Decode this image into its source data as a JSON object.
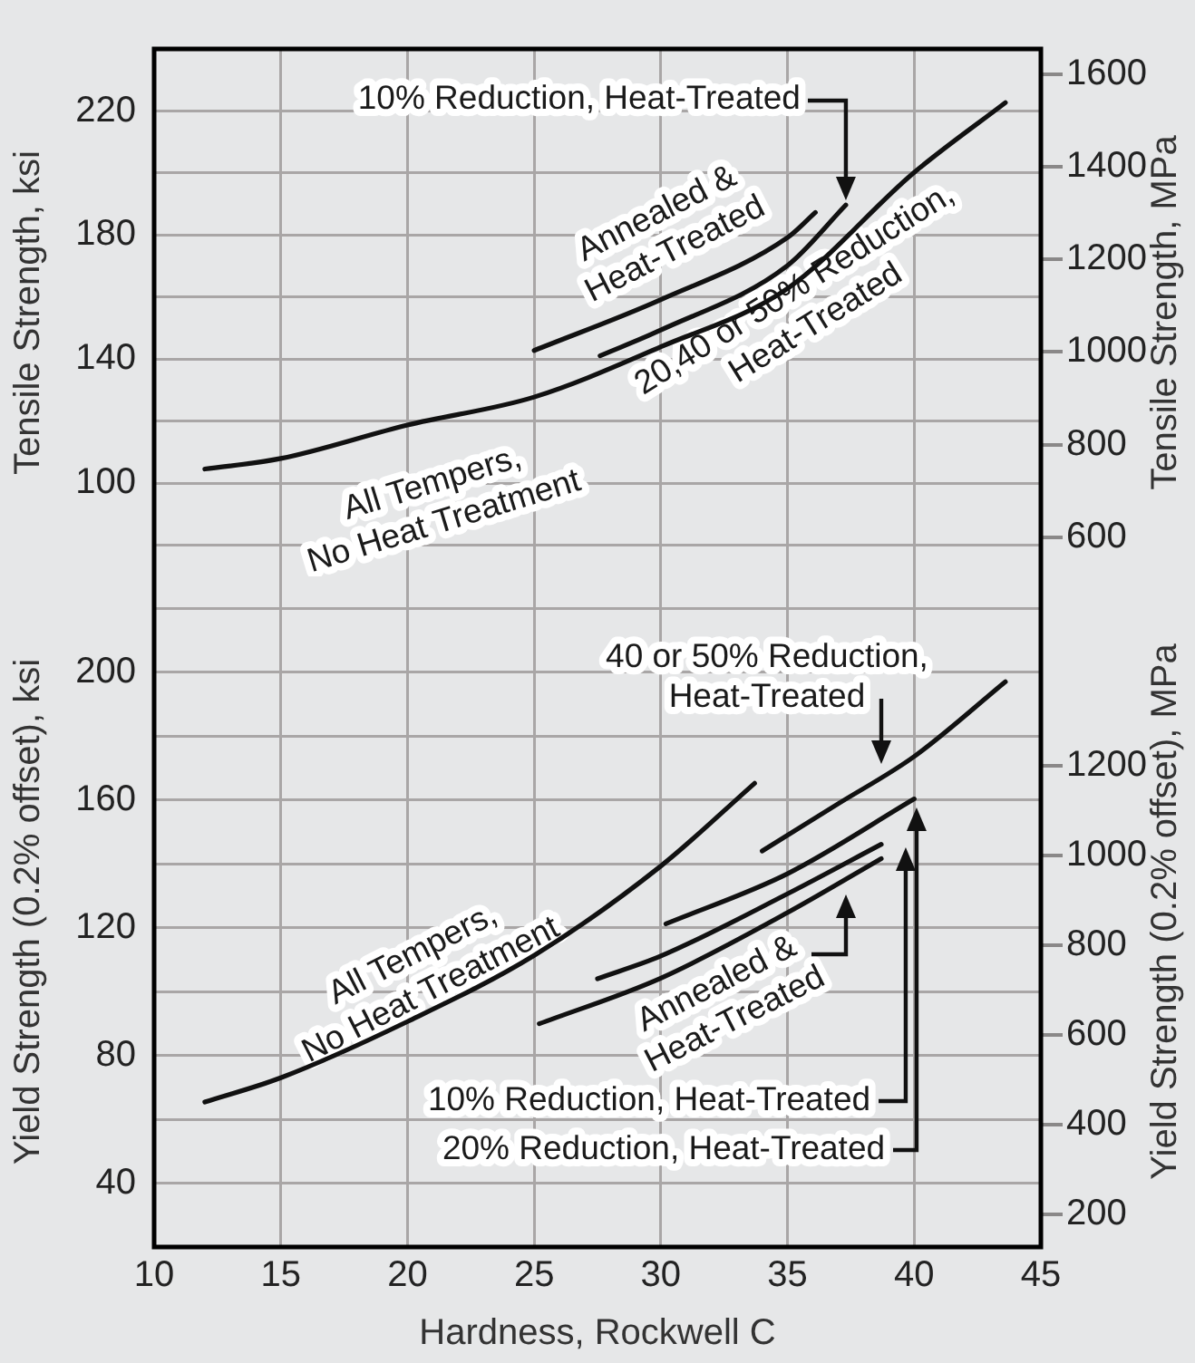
{
  "chart_data": [
    {
      "type": "line",
      "ylabel": "Tensile Strength, ksi",
      "y2label": "Tensile Strength, MPa",
      "xlim": [
        10,
        45
      ],
      "xticks": [
        10,
        15,
        20,
        25,
        30,
        35,
        40,
        45
      ],
      "ylim": [
        70,
        240
      ],
      "yticks": [
        {
          "value": 80,
          "label": null
        },
        100,
        {
          "value": 120,
          "label": null
        },
        140,
        {
          "value": 160,
          "label": null
        },
        180,
        {
          "value": 200,
          "label": null
        },
        220
      ],
      "y2lim": [
        515,
        1655
      ],
      "y2ticks": [
        600,
        800,
        1000,
        1200,
        1400,
        1600
      ],
      "grid": true,
      "tick_labels": "y",
      "series": [
        {
          "color": "#111111",
          "x": [
            12,
            15,
            20,
            25,
            30,
            35,
            40,
            43.6
          ],
          "values": [
            104.6,
            108,
            118.8,
            127.8,
            144,
            162.8,
            200.2,
            222.7
          ]
        },
        {
          "color": "#111111",
          "x": [
            25,
            30,
            35,
            36.1
          ],
          "values": [
            142.8,
            159.2,
            179.2,
            187.3
          ]
        },
        {
          "color": "#111111",
          "x": [
            27.6,
            30,
            35,
            37.3
          ],
          "values": [
            141.1,
            149.4,
            170.2,
            189.7
          ]
        }
      ],
      "annotations": [
        {
          "text": "10% Reduction, Heat-Treated",
          "x": 37.3,
          "y": 189.7
        },
        {
          "text": "Annealed &\nHeat-Treated",
          "x": 32,
          "y": 167
        },
        {
          "text": "20,40 or 50% Reduction,\nHeat-Treated",
          "x": 38,
          "y": 185
        },
        {
          "text": "All Tempers,\nNo Heat Treatment",
          "x": 20,
          "y": 118.8
        }
      ]
    },
    {
      "type": "line",
      "xlabel": "Hardness, Rockwell C",
      "ylabel": "Yield Strength (0.2% offset), ksi",
      "y2label": "Yield Strength (0.2% offset), MPa",
      "xlim": [
        10,
        45
      ],
      "xticks": [
        10,
        15,
        20,
        25,
        30,
        35,
        40,
        45
      ],
      "ylim": [
        20,
        230
      ],
      "yticks": [
        40,
        {
          "value": 60,
          "label": null
        },
        80,
        {
          "value": 100,
          "label": null
        },
        120,
        {
          "value": 140,
          "label": null
        },
        160,
        {
          "value": 180,
          "label": null
        },
        200,
        {
          "value": 220,
          "label": null
        }
      ],
      "y2lim": [
        128,
        1622
      ],
      "y2ticks": [
        200,
        400,
        600,
        800,
        1000,
        1200
      ],
      "grid": true,
      "series": [
        {
          "color": "#111111",
          "x": [
            12,
            15,
            20,
            25,
            30,
            33.7
          ],
          "values": [
            65.4,
            73,
            90.6,
            111.3,
            139.3,
            165.2
          ]
        },
        {
          "color": "#111111",
          "x": [
            34,
            37,
            40,
            43.6
          ],
          "values": [
            144,
            158.8,
            173.6,
            197
          ]
        },
        {
          "color": "#111111",
          "x": [
            30.2,
            35,
            40
          ],
          "values": [
            121.2,
            136.9,
            160.3
          ]
        },
        {
          "color": "#111111",
          "x": [
            27.5,
            30,
            35,
            38.7
          ],
          "values": [
            104,
            111.1,
            130.6,
            146.1
          ]
        },
        {
          "color": "#111111",
          "x": [
            25.2,
            30,
            35,
            38.7
          ],
          "values": [
            89.9,
            104.2,
            124.7,
            141.6
          ]
        }
      ],
      "annotations": [
        {
          "text": "40 or 50% Reduction,\nHeat-Treated",
          "x": 38.7,
          "y": 167
        },
        {
          "text": "All Tempers,\nNo Heat Treatment",
          "x": 20,
          "y": 90.6
        },
        {
          "text": "Annealed &\nHeat-Treated",
          "x": 37.3,
          "y": 133
        },
        "10% Reduction, Heat-Treated",
        "20% Reduction, Heat-Treated"
      ]
    }
  ]
}
